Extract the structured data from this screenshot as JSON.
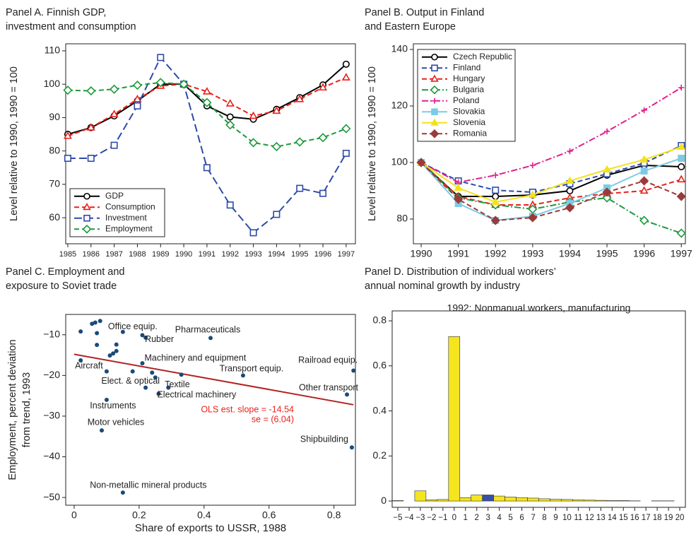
{
  "chart_data": [
    {
      "type": "line",
      "title": [
        "Panel A. Finnish GDP,",
        "investment and consumption"
      ],
      "ylabel": "Level relative to 1990, 1990 = 100",
      "x": [
        1985,
        1986,
        1987,
        1988,
        1989,
        1990,
        1991,
        1992,
        1993,
        1994,
        1995,
        1996,
        1997
      ],
      "xlim": [
        1984.91,
        1997.4
      ],
      "xticks": [
        1985,
        1986,
        1987,
        1988,
        1989,
        1990,
        1991,
        1992,
        1993,
        1994,
        1995,
        1996,
        1997
      ],
      "ylim": [
        52.2,
        112.1
      ],
      "yticks": [
        60,
        70,
        80,
        90,
        100,
        110
      ],
      "legend": "lower left",
      "series": [
        {
          "name": "GDP",
          "color": "#000000",
          "line_style": "solid",
          "marker": "circle",
          "filled": false,
          "values": [
            85,
            87,
            90.5,
            95,
            100,
            100,
            93.5,
            90.2,
            89.5,
            92.5,
            96,
            99.8,
            106
          ]
        },
        {
          "name": "Consumption",
          "color": "#e8211c",
          "line_style": "dashed",
          "marker": "triangle",
          "filled": false,
          "values": [
            84.5,
            87,
            91,
            95.5,
            99.5,
            100,
            97.8,
            94.2,
            90.5,
            92,
            95.5,
            99,
            102
          ]
        },
        {
          "name": "Investment",
          "color": "#2e4aa8",
          "line_style": "longdash",
          "marker": "square",
          "filled": false,
          "values": [
            77.8,
            77.8,
            81.7,
            93.5,
            108,
            100,
            75,
            63.8,
            55.5,
            61,
            68.8,
            67.3,
            79.3
          ]
        },
        {
          "name": "Employment",
          "color": "#1e9a3c",
          "line_style": "dashed",
          "marker": "diamond",
          "filled": false,
          "values": [
            98.2,
            98,
            98.5,
            99.7,
            100.5,
            100,
            94.5,
            87.8,
            82.5,
            81.3,
            82.7,
            84,
            86.7
          ]
        }
      ]
    },
    {
      "type": "line",
      "title": [
        "Panel B. Output in Finland",
        "and Eastern Europe"
      ],
      "ylabel": "Level relative to 1990, 1990 = 100",
      "x": [
        1990,
        1991,
        1992,
        1993,
        1994,
        1995,
        1996,
        1997
      ],
      "xlim": [
        1989.79,
        1997.11
      ],
      "xticks": [
        1990,
        1991,
        1992,
        1993,
        1994,
        1995,
        1996,
        1997
      ],
      "ylim": [
        71.25,
        142
      ],
      "yticks": [
        80,
        100,
        120,
        140
      ],
      "legend": "upper left",
      "series": [
        {
          "name": "Czech Republic",
          "color": "#000000",
          "line_style": "solid",
          "marker": "circle",
          "filled": false,
          "values": [
            100,
            88,
            88,
            88.5,
            90,
            95.5,
            99,
            98.5
          ]
        },
        {
          "name": "Finland",
          "color": "#2e4aa8",
          "line_style": "dashed",
          "marker": "square",
          "filled": false,
          "values": [
            100,
            93.5,
            90.2,
            89.5,
            92.5,
            96,
            99.8,
            106
          ]
        },
        {
          "name": "Hungary",
          "color": "#e8211c",
          "line_style": "dashed",
          "marker": "triangle",
          "filled": false,
          "values": [
            100,
            88,
            85,
            85,
            87.5,
            89,
            90,
            94
          ]
        },
        {
          "name": "Bulgaria",
          "color": "#1e9a3c",
          "line_style": "dashdot",
          "marker": "diamond",
          "filled": false,
          "values": [
            100,
            87.5,
            85,
            83.5,
            86,
            87.5,
            79.5,
            75
          ]
        },
        {
          "name": "Poland",
          "color": "#e0208c",
          "line_style": "dashdot",
          "marker": "plus",
          "filled": false,
          "values": [
            100,
            93,
            95.5,
            99,
            104,
            111,
            118.5,
            126.5
          ]
        },
        {
          "name": "Slovakia",
          "color": "#7ccbe4",
          "line_style": "solid",
          "marker": "square",
          "filled": true,
          "values": [
            100,
            85.5,
            79.5,
            81,
            85.5,
            91,
            97,
            101.5
          ]
        },
        {
          "name": "Slovenia",
          "color": "#f2e21e",
          "line_style": "solid",
          "marker": "triangle",
          "filled": true,
          "values": [
            100,
            91,
            86,
            88.5,
            93.5,
            97.5,
            101,
            105.5
          ]
        },
        {
          "name": "Romania",
          "color": "#9b3a3a",
          "line_style": "dashed",
          "marker": "diamond",
          "filled": true,
          "values": [
            100,
            87,
            79.5,
            80.5,
            84,
            89.5,
            93.5,
            88
          ]
        }
      ]
    },
    {
      "type": "scatter",
      "title": [
        "Panel C. Employment and",
        "exposure to Soviet trade"
      ],
      "ylabel": [
        "Employment, percent deviation",
        "from trend, 1993"
      ],
      "xlabel": "Share of exports to USSR, 1988",
      "xlim": [
        -0.026,
        0.866
      ],
      "xticks": [
        0,
        0.2,
        0.4,
        0.6,
        0.8
      ],
      "ylim": [
        -51.9,
        -5
      ],
      "yticks": [
        {
          "value": -50,
          "label": "−50"
        },
        {
          "value": -40,
          "label": "−40"
        },
        {
          "value": -30,
          "label": "−30"
        },
        {
          "value": -20,
          "label": "−20"
        },
        {
          "value": -10,
          "label": "−10"
        }
      ],
      "color": "#1a4a7a",
      "x": [
        0.02,
        0.055,
        0.065,
        0.08,
        0.07,
        0.07,
        0.13,
        0.13,
        0.11,
        0.12,
        0.15,
        0.21,
        0.22,
        0.42,
        0.21,
        0.02,
        0.1,
        0.18,
        0.24,
        0.25,
        0.33,
        0.52,
        0.86,
        0.22,
        0.29,
        0.26,
        0.84,
        0.1,
        0.085,
        0.855,
        0.15
      ],
      "y": [
        -9.2,
        -7.3,
        -7,
        -6.6,
        -9.6,
        -12.5,
        -12.4,
        -14,
        -15.1,
        -14.6,
        -9.3,
        -10.1,
        -10.7,
        -10.8,
        -17,
        -16.3,
        -19,
        -19,
        -19.3,
        -20.5,
        -19.8,
        -20,
        -18.8,
        -23,
        -23,
        -24.5,
        -24.7,
        -26,
        -33.5,
        -37.7,
        -48.8
      ],
      "labels": [
        null,
        null,
        null,
        null,
        null,
        null,
        null,
        null,
        null,
        null,
        "Office equip.",
        null,
        "Rubber",
        "Pharmaceuticals",
        "Machinery and equipment",
        "Aircraft",
        null,
        null,
        null,
        null,
        null,
        "Transport equip.",
        "Railroad equip.",
        "Elect. & optical",
        "Textile",
        "Electrical machinery",
        "Other transport",
        "Instruments",
        "Motor vehicles",
        "Shipbuilding",
        "Non-metallic mineral products"
      ],
      "fit_line": {
        "color": "#b22222",
        "x": [
          0,
          0.86
        ],
        "y": [
          -14.8,
          -27.2
        ]
      },
      "annotations": [
        "OLS est. slope = -14.54",
        "se =  (6.04)"
      ],
      "annotation_color": "#e8211c"
    },
    {
      "type": "bar",
      "title": [
        "Panel D. Distribution of individual workers’",
        "annual nominal growth by industry"
      ],
      "subtitle": "1992: Nonmanual workers, manufacturing",
      "categories": [
        "−5",
        "−4",
        "−3",
        "−2",
        "−1",
        "0",
        "1",
        "2",
        "3",
        "4",
        "5",
        "6",
        "7",
        "8",
        "9",
        "10",
        "11",
        "12",
        "13",
        "14",
        "15",
        "16",
        "17",
        "18",
        "19",
        "20"
      ],
      "values": [
        0.002,
        0,
        0.045,
        0.005,
        0.007,
        0.73,
        0.015,
        0.027,
        0.027,
        0.022,
        0.018,
        0.015,
        0.013,
        0.01,
        0.008,
        0.007,
        0.005,
        0.004,
        0.003,
        0.002,
        0.002,
        0.001,
        0,
        0.001,
        0.001,
        0
      ],
      "colors": [
        "#f5e51e",
        "#f5e51e",
        "#f5e51e",
        "#f5e51e",
        "#f5e51e",
        "#f5e51e",
        "#f5e51e",
        "#f5e51e",
        "#3a4fa8",
        "#f5e51e",
        "#f5e51e",
        "#f5e51e",
        "#f5e51e",
        "#f5e51e",
        "#f5e51e",
        "#f5e51e",
        "#f5e51e",
        "#f5e51e",
        "#f5e51e",
        "#f5e51e",
        "#f5e51e",
        "#f5e51e",
        "#f5e51e",
        "#f5e51e",
        "#f5e51e",
        "#f5e51e"
      ],
      "ylim": [
        -0.028,
        0.844
      ],
      "yticks": [
        0,
        0.2,
        0.4,
        0.6,
        0.8
      ]
    }
  ]
}
